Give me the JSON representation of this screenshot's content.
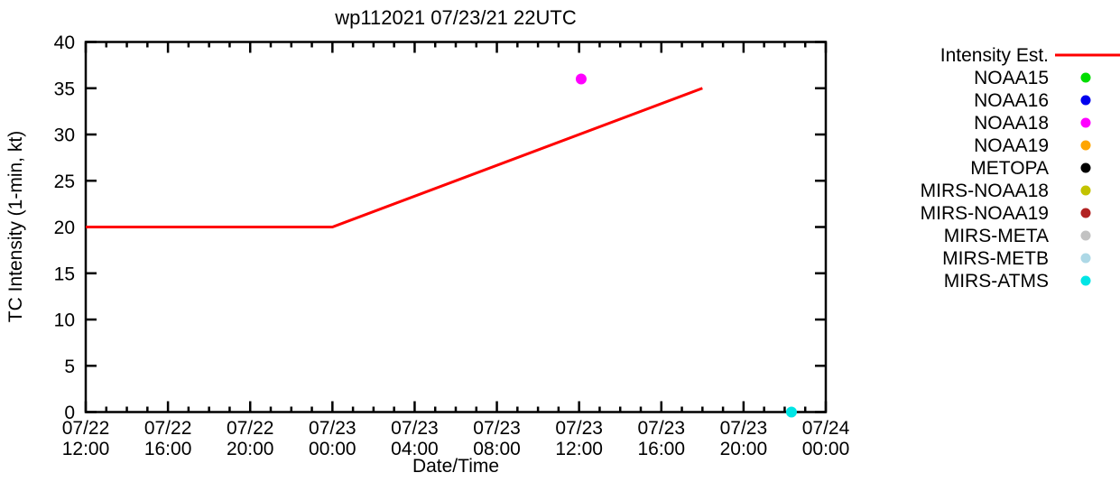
{
  "chart_data": {
    "type": "line+scatter",
    "title": "wp112021 07/23/21 22UTC",
    "xlabel": "Date/Time",
    "ylabel": "TC Intensity (1-min, kt)",
    "ylim": [
      0,
      40
    ],
    "ytick_step": 5,
    "x_range_hours": [
      0,
      36
    ],
    "x_major_step_hours": 4,
    "x_minor_step_hours": 1,
    "grid": false,
    "legend_position": "outside-right",
    "axis_color": "#000000",
    "background_color": "#ffffff",
    "x_ticks": [
      {
        "date": "07/22",
        "time": "12:00",
        "hour": 0
      },
      {
        "date": "07/22",
        "time": "16:00",
        "hour": 4
      },
      {
        "date": "07/22",
        "time": "20:00",
        "hour": 8
      },
      {
        "date": "07/23",
        "time": "00:00",
        "hour": 12
      },
      {
        "date": "07/23",
        "time": "04:00",
        "hour": 16
      },
      {
        "date": "07/23",
        "time": "08:00",
        "hour": 20
      },
      {
        "date": "07/23",
        "time": "12:00",
        "hour": 24
      },
      {
        "date": "07/23",
        "time": "16:00",
        "hour": 28
      },
      {
        "date": "07/23",
        "time": "20:00",
        "hour": 32
      },
      {
        "date": "07/24",
        "time": "00:00",
        "hour": 36
      }
    ],
    "series": [
      {
        "name": "Intensity Est.",
        "type": "line",
        "color": "#ff0000",
        "points": [
          {
            "time": "07/22 12:00",
            "hour": 0,
            "kt": 20
          },
          {
            "time": "07/23 00:00",
            "hour": 12,
            "kt": 20
          },
          {
            "time": "07/23 18:00",
            "hour": 30,
            "kt": 35
          }
        ]
      },
      {
        "name": "NOAA15",
        "type": "scatter",
        "color": "#00dd00",
        "points": []
      },
      {
        "name": "NOAA16",
        "type": "scatter",
        "color": "#0000ee",
        "points": []
      },
      {
        "name": "NOAA18",
        "type": "scatter",
        "color": "#ff00ff",
        "points": [
          {
            "time": "07/23 12:00",
            "hour": 24.1,
            "kt": 36
          }
        ]
      },
      {
        "name": "NOAA19",
        "type": "scatter",
        "color": "#ffa500",
        "points": []
      },
      {
        "name": "METOPA",
        "type": "scatter",
        "color": "#000000",
        "points": []
      },
      {
        "name": "MIRS-NOAA18",
        "type": "scatter",
        "color": "#c3c300",
        "points": []
      },
      {
        "name": "MIRS-NOAA19",
        "type": "scatter",
        "color": "#b22222",
        "points": []
      },
      {
        "name": "MIRS-META",
        "type": "scatter",
        "color": "#c2c2c2",
        "points": []
      },
      {
        "name": "MIRS-METB",
        "type": "scatter",
        "color": "#add8e6",
        "points": []
      },
      {
        "name": "MIRS-ATMS",
        "type": "scatter",
        "color": "#00e5e5",
        "points": [
          {
            "time": "07/23 22:20",
            "hour": 34.33,
            "kt": 0
          }
        ]
      }
    ]
  }
}
